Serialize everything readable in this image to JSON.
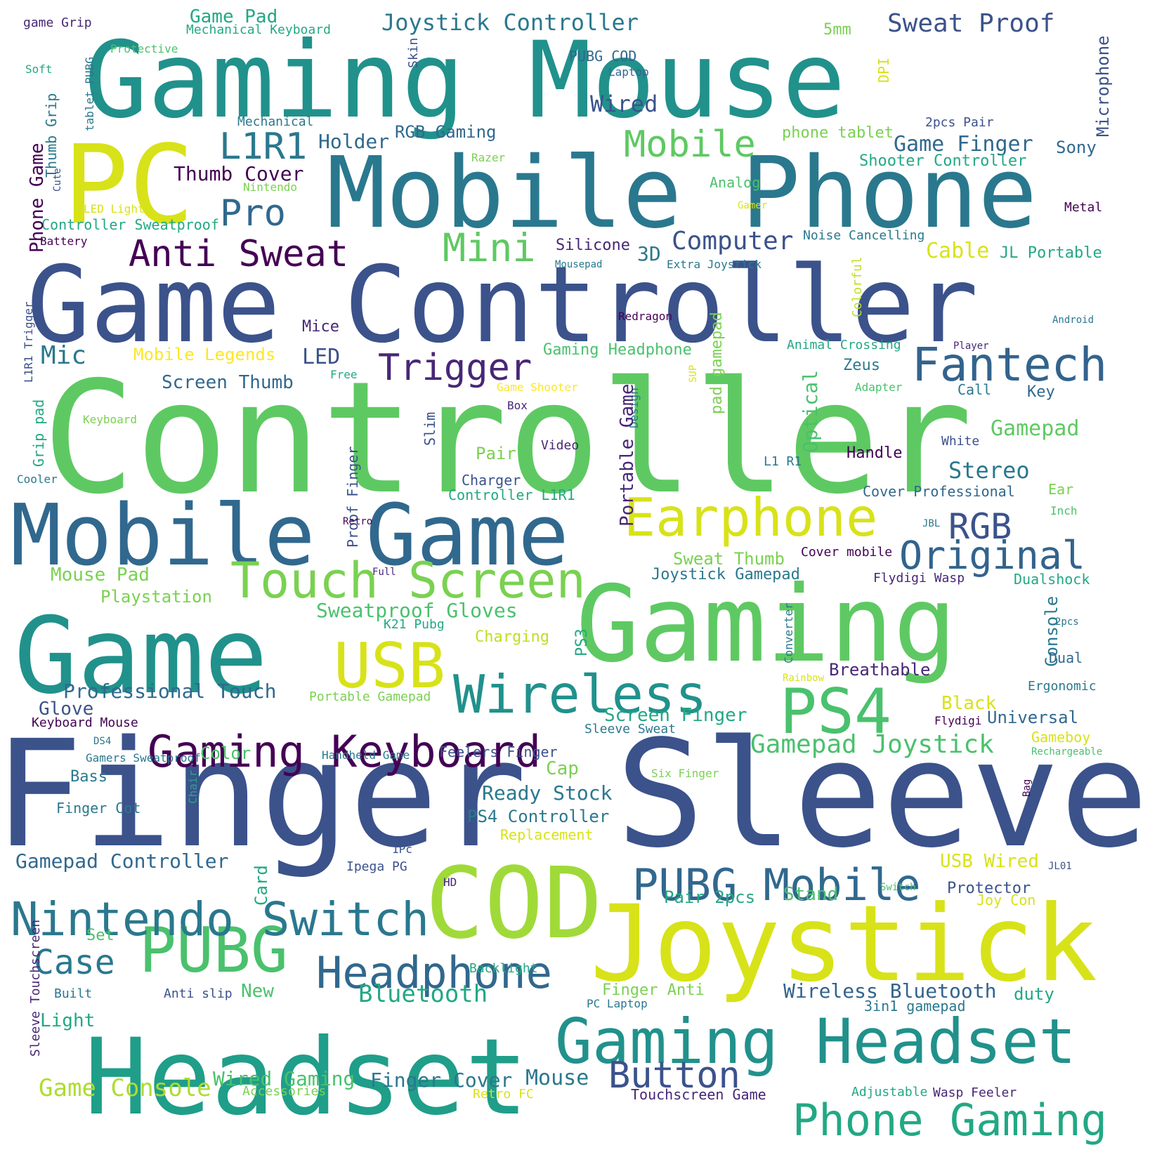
{
  "words": [
    {
      "text": "Gaming Mouse",
      "color": "#21918c"
    },
    {
      "text": "Mobile Phone",
      "color": "#2a788e"
    },
    {
      "text": "PC",
      "color": "#d8e219"
    },
    {
      "text": "Game Controller",
      "color": "#3b528b"
    },
    {
      "text": "Controller",
      "color": "#5ec962"
    },
    {
      "text": "Mobile Game",
      "color": "#31688e"
    },
    {
      "text": "Gaming",
      "color": "#5ec962"
    },
    {
      "text": "Game",
      "color": "#21918c"
    },
    {
      "text": "Finger Sleeve",
      "color": "#3b528b"
    },
    {
      "text": "Joystick",
      "color": "#d8e219"
    },
    {
      "text": "Headset",
      "color": "#1f9e89"
    },
    {
      "text": "COD",
      "color": "#a0da39"
    },
    {
      "text": "Gaming Headset",
      "color": "#21918c"
    },
    {
      "text": "Phone Gaming",
      "color": "#22a884"
    },
    {
      "text": "PUBG",
      "color": "#4ac16d"
    },
    {
      "text": "Nintendo Switch",
      "color": "#2a788e"
    },
    {
      "text": "Headphone",
      "color": "#31688e"
    },
    {
      "text": "PUBG Mobile",
      "color": "#31688e"
    },
    {
      "text": "Gaming Keyboard",
      "color": "#440154"
    },
    {
      "text": "Wireless",
      "color": "#21918c"
    },
    {
      "text": "PS4",
      "color": "#4ac16d"
    },
    {
      "text": "USB",
      "color": "#d8e219"
    },
    {
      "text": "Touch Screen",
      "color": "#7ad151"
    },
    {
      "text": "Earphone",
      "color": "#d8e219"
    },
    {
      "text": "Original",
      "color": "#33638d"
    },
    {
      "text": "RGB",
      "color": "#3b528b"
    },
    {
      "text": "Fantech",
      "color": "#33638d"
    },
    {
      "text": "Trigger",
      "color": "#482677"
    },
    {
      "text": "Anti Sweat",
      "color": "#440154"
    },
    {
      "text": "Mini",
      "color": "#5ec962"
    },
    {
      "text": "Mobile",
      "color": "#5ec962"
    },
    {
      "text": "L1R1",
      "color": "#2a788e"
    },
    {
      "text": "Pro",
      "color": "#31688e"
    },
    {
      "text": "Joystick Controller",
      "color": "#2a788e"
    },
    {
      "text": "Sweat Proof",
      "color": "#3b528b"
    },
    {
      "text": "Game Finger",
      "color": "#31688e"
    },
    {
      "text": "Computer",
      "color": "#3b528b"
    },
    {
      "text": "Case",
      "color": "#2a788e"
    },
    {
      "text": "Button",
      "color": "#3b528b"
    },
    {
      "text": "Game Console",
      "color": "#addc30"
    },
    {
      "text": "Bluetooth",
      "color": "#22a884"
    },
    {
      "text": "Wireless Bluetooth",
      "color": "#33638d"
    },
    {
      "text": "Gamepad Joystick",
      "color": "#4ac16d"
    },
    {
      "text": "Gamepad",
      "color": "#5ec962"
    },
    {
      "text": "Stereo",
      "color": "#2a788e"
    },
    {
      "text": "Mic",
      "color": "#2a788e"
    },
    {
      "text": "Game Pad",
      "color": "#22a884"
    },
    {
      "text": "Mechanical Keyboard",
      "color": "#22a884"
    },
    {
      "text": "game Grip",
      "color": "#482677"
    },
    {
      "text": "Protective",
      "color": "#4ac16d"
    },
    {
      "text": "Soft",
      "color": "#22a884"
    },
    {
      "text": "Skin",
      "color": "#3b528b"
    },
    {
      "text": "PUBG COD",
      "color": "#31688e"
    },
    {
      "text": "5mm",
      "color": "#7ad151"
    },
    {
      "text": "Laptop",
      "color": "#31688e"
    },
    {
      "text": "DPI",
      "color": "#d8e219"
    },
    {
      "text": "Microphone",
      "color": "#3b528b"
    },
    {
      "text": "Wired",
      "color": "#3b528b"
    },
    {
      "text": "2pcs Pair",
      "color": "#3b528b"
    },
    {
      "text": "phone tablet",
      "color": "#7ad151"
    },
    {
      "text": "Sony",
      "color": "#31688e"
    },
    {
      "text": "Shooter Controller",
      "color": "#22a884"
    },
    {
      "text": "Holder",
      "color": "#31688e"
    },
    {
      "text": "RGB Gaming",
      "color": "#31688e"
    },
    {
      "text": "Mechanical",
      "color": "#2a788e"
    },
    {
      "text": "Thumb Cover",
      "color": "#440154"
    },
    {
      "text": "Nintendo",
      "color": "#7ad151"
    },
    {
      "text": "Razer",
      "color": "#7ad151"
    },
    {
      "text": "Analog",
      "color": "#4ac16d"
    },
    {
      "text": "Gamer",
      "color": "#d8e219"
    },
    {
      "text": "Metal",
      "color": "#440154"
    },
    {
      "text": "LED Light",
      "color": "#d8e219"
    },
    {
      "text": "Controller Sweatproof",
      "color": "#22a884"
    },
    {
      "text": "Battery",
      "color": "#440154"
    },
    {
      "text": "Phone Game",
      "color": "#440154"
    },
    {
      "text": "Thumb Grip",
      "color": "#2a788e"
    },
    {
      "text": "tablet PUBG",
      "color": "#2a788e"
    },
    {
      "text": "Cute",
      "color": "#3b528b"
    },
    {
      "text": "Noise Cancelling",
      "color": "#2a788e"
    },
    {
      "text": "Silicone",
      "color": "#482677"
    },
    {
      "text": "3D",
      "color": "#2a788e"
    },
    {
      "text": "Cable",
      "color": "#d8e219"
    },
    {
      "text": "JL Portable",
      "color": "#22a884"
    },
    {
      "text": "Mousepad",
      "color": "#2a788e"
    },
    {
      "text": "Extra Joystick",
      "color": "#2a788e"
    },
    {
      "text": "Colorful",
      "color": "#bddf26"
    },
    {
      "text": "Redragon",
      "color": "#440154"
    },
    {
      "text": "Android",
      "color": "#2a788e"
    },
    {
      "text": "L1R1 Trigger",
      "color": "#3b528b"
    },
    {
      "text": "Mice",
      "color": "#482677"
    },
    {
      "text": "Mobile Legends",
      "color": "#fde725"
    },
    {
      "text": "LED",
      "color": "#3b528b"
    },
    {
      "text": "Gaming Headphone",
      "color": "#4ac16d"
    },
    {
      "text": "Animal Crossing",
      "color": "#22a884"
    },
    {
      "text": "Player",
      "color": "#482677"
    },
    {
      "text": "Screen Thumb",
      "color": "#31688e"
    },
    {
      "text": "Free",
      "color": "#22a884"
    },
    {
      "text": "Game Shooter",
      "color": "#fde725"
    },
    {
      "text": "pad gamepad",
      "color": "#7ad151"
    },
    {
      "text": "SUP",
      "color": "#d8e219"
    },
    {
      "text": "Zeus",
      "color": "#2a788e"
    },
    {
      "text": "Adapter",
      "color": "#4ac16d"
    },
    {
      "text": "Call",
      "color": "#2a788e"
    },
    {
      "text": "Key",
      "color": "#31688e"
    },
    {
      "text": "Keyboard",
      "color": "#7ad151"
    },
    {
      "text": "Box",
      "color": "#482677"
    },
    {
      "text": "Slim",
      "color": "#3b528b"
    },
    {
      "text": "Design",
      "color": "#2a788e"
    },
    {
      "text": "Portable Game",
      "color": "#482677"
    },
    {
      "text": "Optical",
      "color": "#4ac16d"
    },
    {
      "text": "White",
      "color": "#3b528b"
    },
    {
      "text": "Grip pad",
      "color": "#22a884"
    },
    {
      "text": "Video",
      "color": "#482677"
    },
    {
      "text": "Pair",
      "color": "#7ad151"
    },
    {
      "text": "Handle",
      "color": "#440154"
    },
    {
      "text": "L1 R1",
      "color": "#2a788e"
    },
    {
      "text": "Cooler",
      "color": "#2a788e"
    },
    {
      "text": "Charger",
      "color": "#3b528b"
    },
    {
      "text": "Proof Finger",
      "color": "#3b528b"
    },
    {
      "text": "Controller L1R1",
      "color": "#22a884"
    },
    {
      "text": "Cover Professional",
      "color": "#31688e"
    },
    {
      "text": "Ear",
      "color": "#7ad151"
    },
    {
      "text": "Inch",
      "color": "#4ac16d"
    },
    {
      "text": "Retro",
      "color": "#440154"
    },
    {
      "text": "JBL",
      "color": "#2a788e"
    },
    {
      "text": "Sweat Thumb",
      "color": "#7ad151"
    },
    {
      "text": "Cover mobile",
      "color": "#440154"
    },
    {
      "text": "Mouse Pad",
      "color": "#7ad151"
    },
    {
      "text": "Full",
      "color": "#482677"
    },
    {
      "text": "Joystick Gamepad",
      "color": "#2a788e"
    },
    {
      "text": "Flydigi Wasp",
      "color": "#482677"
    },
    {
      "text": "Dualshock",
      "color": "#22a884"
    },
    {
      "text": "Playstation",
      "color": "#7ad151"
    },
    {
      "text": "Sweatproof Gloves",
      "color": "#4ac16d"
    },
    {
      "text": "Console",
      "color": "#2a788e"
    },
    {
      "text": "K21 Pubg",
      "color": "#22a884"
    },
    {
      "text": "Charging",
      "color": "#bddf26"
    },
    {
      "text": "PS3",
      "color": "#22a884"
    },
    {
      "text": "Converter",
      "color": "#2a788e"
    },
    {
      "text": "2pcs",
      "color": "#2a788e"
    },
    {
      "text": "Dual",
      "color": "#31688e"
    },
    {
      "text": "Breathable",
      "color": "#482677"
    },
    {
      "text": "Rainbow",
      "color": "#d8e219"
    },
    {
      "text": "Ergonomic",
      "color": "#2a788e"
    },
    {
      "text": "Professional Touch",
      "color": "#31688e"
    },
    {
      "text": "Portable Gamepad",
      "color": "#7ad151"
    },
    {
      "text": "Glove",
      "color": "#3b528b"
    },
    {
      "text": "Black",
      "color": "#d8e219"
    },
    {
      "text": "Keyboard Mouse",
      "color": "#440154"
    },
    {
      "text": "Screen Finger",
      "color": "#22a884"
    },
    {
      "text": "Flydigi",
      "color": "#440154"
    },
    {
      "text": "Universal",
      "color": "#31688e"
    },
    {
      "text": "Sleeve Sweat",
      "color": "#2a788e"
    },
    {
      "text": "DS4",
      "color": "#2a788e"
    },
    {
      "text": "Gameboy",
      "color": "#d8e219"
    },
    {
      "text": "Rechargeable",
      "color": "#4ac16d"
    },
    {
      "text": "Gamers Sweatproof",
      "color": "#2a788e"
    },
    {
      "text": "Color",
      "color": "#4ac16d"
    },
    {
      "text": "Handheld Game",
      "color": "#2a788e"
    },
    {
      "text": "Feelers Finger",
      "color": "#3b528b"
    },
    {
      "text": "Bass",
      "color": "#2a788e"
    },
    {
      "text": "Chair",
      "color": "#22a884"
    },
    {
      "text": "Cap",
      "color": "#7ad151"
    },
    {
      "text": "Six Finger",
      "color": "#7ad151"
    },
    {
      "text": "Bag",
      "color": "#440154"
    },
    {
      "text": "Ready Stock",
      "color": "#2a788e"
    },
    {
      "text": "Finger Cot",
      "color": "#2a788e"
    },
    {
      "text": "PS4 Controller",
      "color": "#2a788e"
    },
    {
      "text": "Replacement",
      "color": "#d8e219"
    },
    {
      "text": "1Pc",
      "color": "#3b528b"
    },
    {
      "text": "Gamepad Controller",
      "color": "#31688e"
    },
    {
      "text": "Ipega PG",
      "color": "#3b528b"
    },
    {
      "text": "Card",
      "color": "#22a884"
    },
    {
      "text": "USB Wired",
      "color": "#d8e219"
    },
    {
      "text": "JL01",
      "color": "#3b528b"
    },
    {
      "text": "HD",
      "color": "#482677"
    },
    {
      "text": "Switch",
      "color": "#4ac16d"
    },
    {
      "text": "Pair 2pcs",
      "color": "#22a884"
    },
    {
      "text": "Stand",
      "color": "#4ac16d"
    },
    {
      "text": "Protector",
      "color": "#3b528b"
    },
    {
      "text": "Joy Con",
      "color": "#d8e219"
    },
    {
      "text": "Set",
      "color": "#4ac16d"
    },
    {
      "text": "Backlight",
      "color": "#22a884"
    },
    {
      "text": "Sleeve Touchscreen",
      "color": "#482677"
    },
    {
      "text": "Built",
      "color": "#2a788e"
    },
    {
      "text": "Anti slip",
      "color": "#3b528b"
    },
    {
      "text": "New",
      "color": "#4ac16d"
    },
    {
      "text": "Finger Anti",
      "color": "#7ad151"
    },
    {
      "text": "PC Laptop",
      "color": "#2a788e"
    },
    {
      "text": "3in1 gamepad",
      "color": "#2a788e"
    },
    {
      "text": "duty",
      "color": "#22a884"
    },
    {
      "text": "Light",
      "color": "#22a884"
    },
    {
      "text": "Wired Gaming",
      "color": "#4ac16d"
    },
    {
      "text": "Finger Cover",
      "color": "#2a788e"
    },
    {
      "text": "Mouse",
      "color": "#2a788e"
    },
    {
      "text": "Accessories",
      "color": "#7ad151"
    },
    {
      "text": "Retro FC",
      "color": "#d8e219"
    },
    {
      "text": "Touchscreen Game",
      "color": "#482677"
    },
    {
      "text": "Adjustable",
      "color": "#22a884"
    },
    {
      "text": "Wasp Feeler",
      "color": "#482677"
    }
  ]
}
